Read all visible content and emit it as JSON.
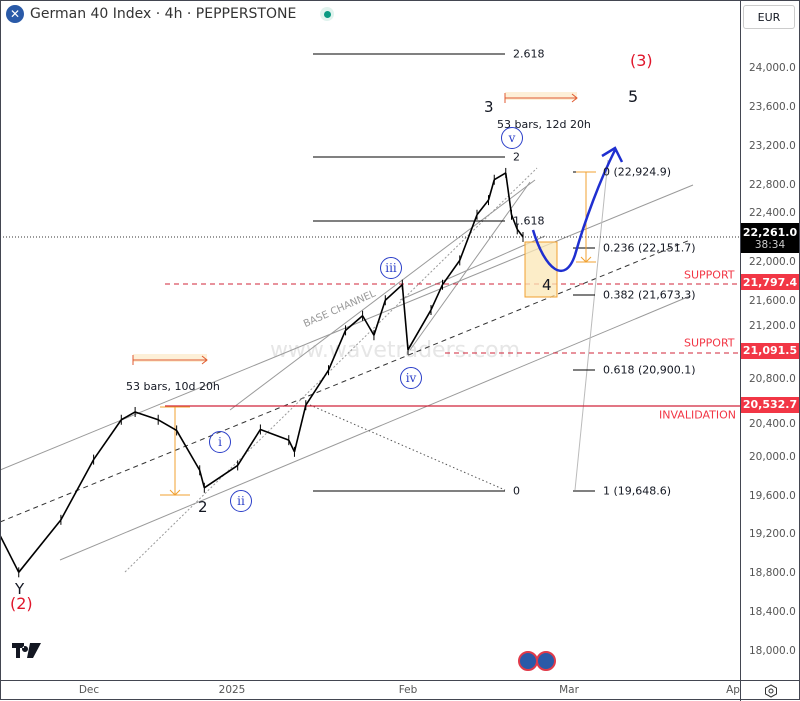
{
  "header": {
    "symbol_icon": "close-x-icon",
    "title": "German 40 Index · 4h · PEPPERSTONE",
    "status": "market-open-dot",
    "currency": "EUR"
  },
  "colors": {
    "support": "#f23645",
    "wave_blue": "#2a3ec8",
    "measure": "#f0a030",
    "last_price_bg": "#000000"
  },
  "price_axis": {
    "ticks": [
      "24,000.0",
      "23,600.0",
      "23,200.0",
      "22,800.0",
      "22,400.0",
      "22,000.0",
      "21,600.0",
      "21,200.0",
      "20,800.0",
      "20,400.0",
      "20,000.0",
      "19,600.0",
      "19,200.0",
      "18,800.0",
      "18,400.0",
      "18,000.0"
    ],
    "last_price": "22,261.0",
    "countdown": "38:34",
    "badges": [
      "21,797.4",
      "21,091.5",
      "20,532.7"
    ]
  },
  "time_axis": {
    "ticks": [
      "Dec",
      "2025",
      "Feb",
      "Mar",
      "Ap"
    ]
  },
  "annotations": {
    "fib_left": [
      "2.618",
      "2",
      "1.618",
      "0"
    ],
    "fib_right": [
      "0 (22,924.9)",
      "0.236 (22,151.7)",
      "0.382 (21,673.3)",
      "0.618 (20,900.1)",
      "1 (19,648.6)"
    ],
    "support_1": "SUPPORT",
    "support_2": "SUPPORT",
    "invalidation": "INVALIDATION",
    "base_channel": "BASE CHANNEL",
    "bars_1": "53 bars, 10d 20h",
    "bars_2": "53 bars, 12d 20h",
    "waves": {
      "Y": "Y",
      "w2": "2",
      "w3": "3",
      "w4": "4",
      "w5": "5",
      "i": "i",
      "ii": "ii",
      "iii": "iii",
      "iv": "iv",
      "v": "v",
      "major2": "(2)",
      "major3": "(3)"
    },
    "watermark": "www.wavetraders.com"
  },
  "chart_data": {
    "type": "line",
    "title": "German 40 Index · 4h · PEPPERSTONE",
    "ylim": [
      17800,
      24300
    ],
    "xlim": [
      "2024-11-12",
      "2025-04-05"
    ],
    "points": [
      [
        "2024-11-12",
        19190
      ],
      [
        "2024-11-16",
        18810
      ],
      [
        "2024-11-25",
        19350
      ],
      [
        "2024-12-02",
        19970
      ],
      [
        "2024-12-08",
        20380
      ],
      [
        "2024-12-11",
        20460
      ],
      [
        "2024-12-16",
        20380
      ],
      [
        "2024-12-20",
        20270
      ],
      [
        "2024-12-25",
        19860
      ],
      [
        "2024-12-26",
        19680
      ],
      [
        "2025-01-02",
        19910
      ],
      [
        "2025-01-06",
        20280
      ],
      [
        "2025-01-11",
        20170
      ],
      [
        "2025-01-12",
        20050
      ],
      [
        "2025-01-14",
        20530
      ],
      [
        "2025-01-18",
        20890
      ],
      [
        "2025-01-21",
        21300
      ],
      [
        "2025-01-24",
        21450
      ],
      [
        "2025-01-26",
        21250
      ],
      [
        "2025-01-28",
        21610
      ],
      [
        "2025-01-31",
        21770
      ],
      [
        "2025-02-01",
        21100
      ],
      [
        "2025-02-05",
        21510
      ],
      [
        "2025-02-07",
        21770
      ],
      [
        "2025-02-10",
        22020
      ],
      [
        "2025-02-13",
        22490
      ],
      [
        "2025-02-15",
        22640
      ],
      [
        "2025-02-16",
        22850
      ],
      [
        "2025-02-18",
        22920
      ],
      [
        "2025-02-19",
        22490
      ],
      [
        "2025-02-20",
        22340
      ],
      [
        "2025-02-21",
        22261
      ]
    ],
    "levels": [
      {
        "label": "SUPPORT",
        "value": 21797.4
      },
      {
        "label": "SUPPORT",
        "value": 21091.5
      },
      {
        "label": "INVALIDATION",
        "value": 20532.7
      },
      {
        "label": "last",
        "value": 22261.0
      }
    ]
  }
}
